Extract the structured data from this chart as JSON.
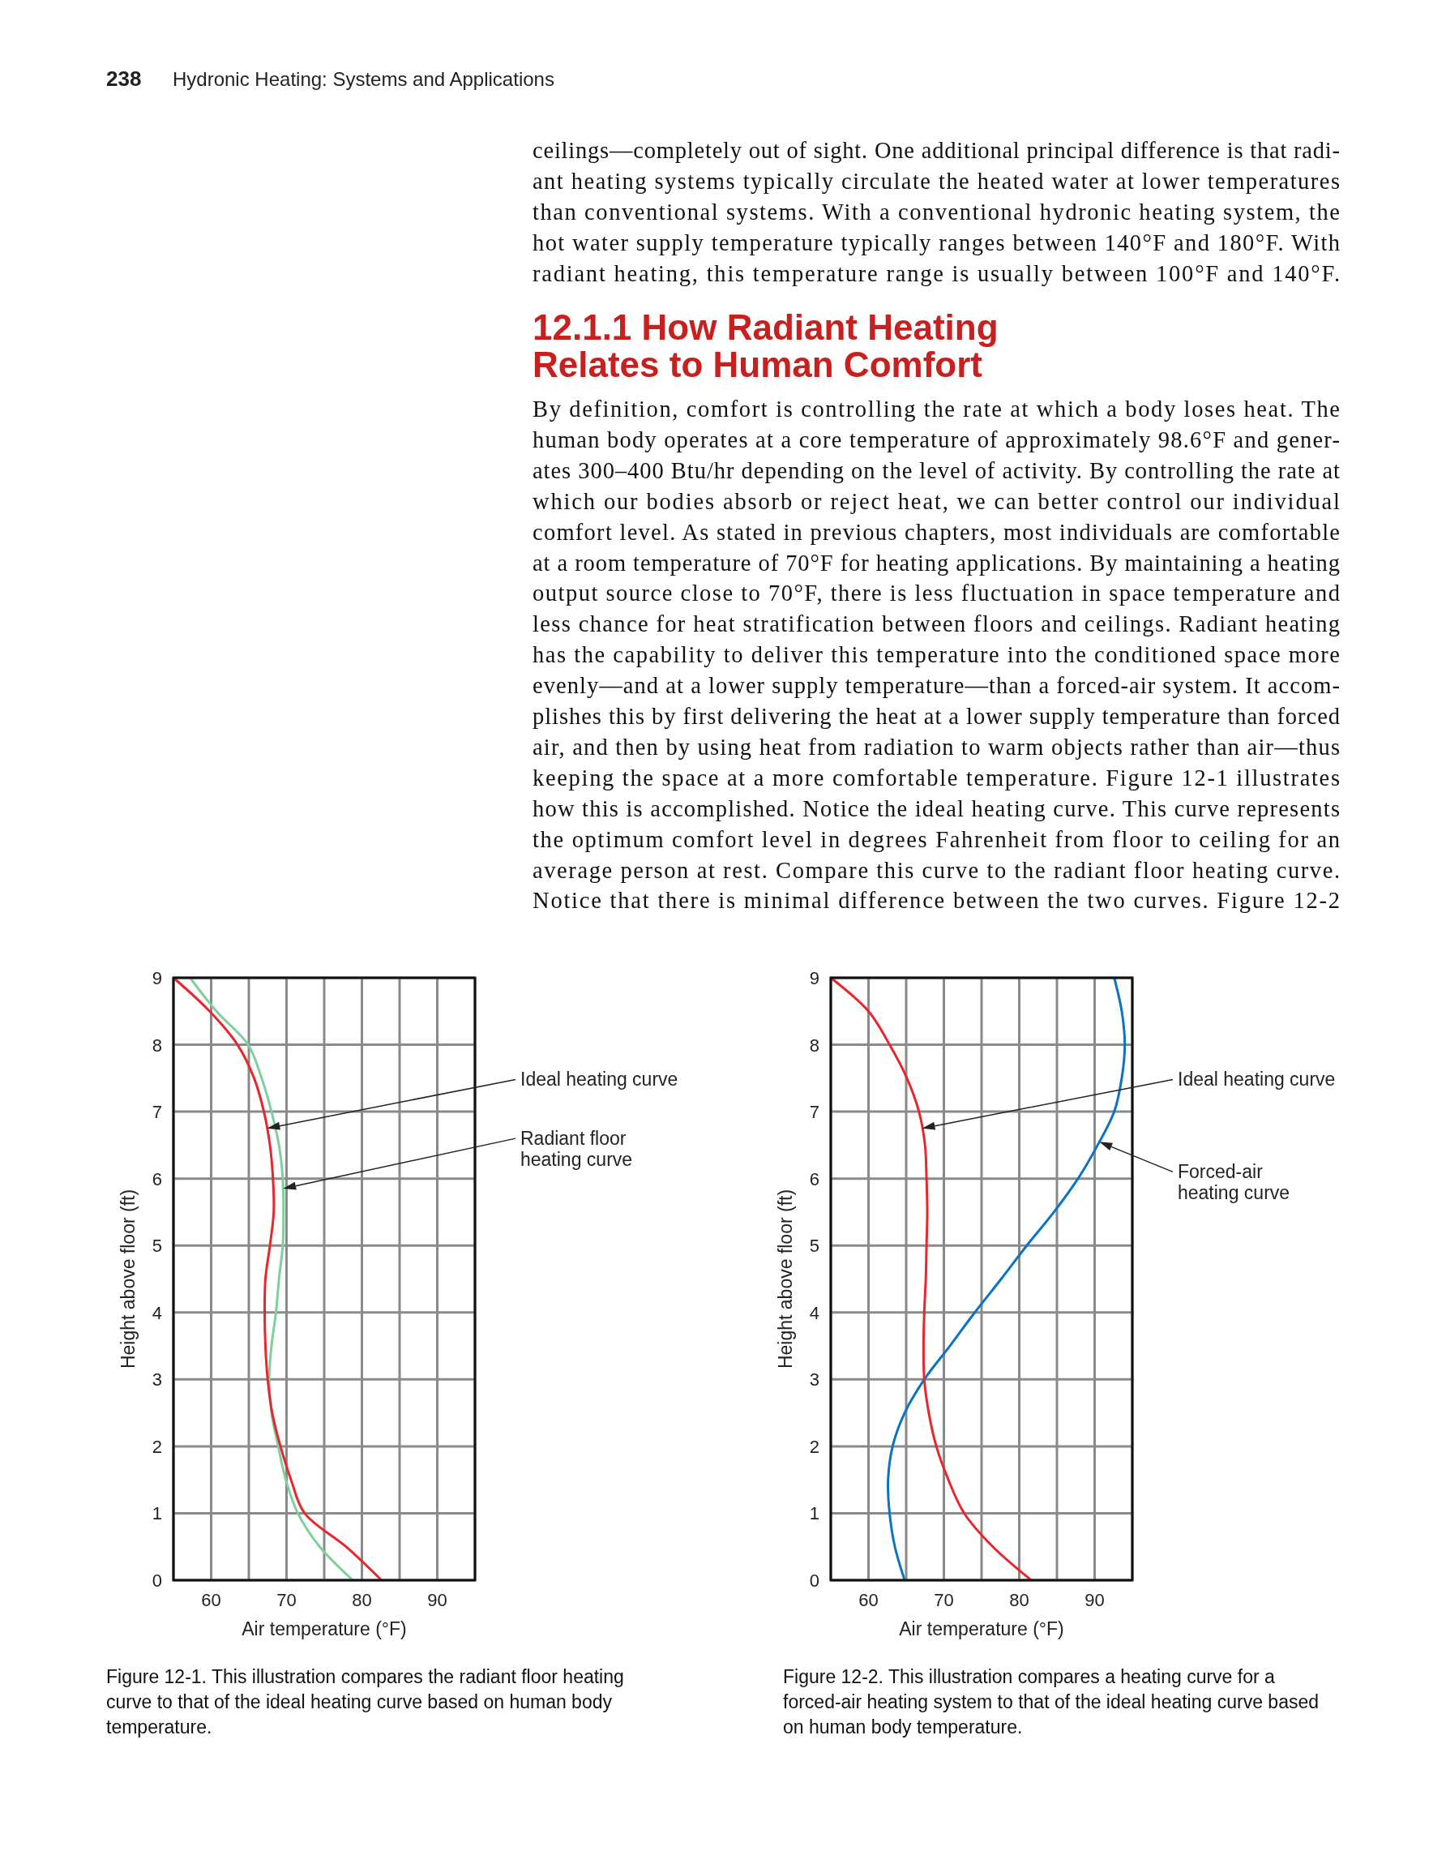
{
  "chart_data": [
    {
      "type": "other",
      "title": "12.1.1 How Radiant Heating Relates to Human Comfort",
      "annotations": [
        "238",
        "Hydronic Heating: Systems and Applications",
        "ceilings—completely out of sight. One additional principal difference is that radi-",
        "ant heating systems typically circulate the heated water at lower temperatures",
        "than conventional systems. With a conventional hydronic heating system, the",
        "hot water supply temperature typically ranges between 140°F and 180°F. With",
        "radiant heating, this temperature range is usually between 100°F and 140°F.",
        "By definition, comfort is controlling the rate at which a body loses heat. The",
        "human body operates at a core temperature of approximately 98.6°F and gener-",
        "ates 300–400 Btu/hr depending on the level of activity. By controlling the rate at",
        "which our bodies absorb or reject heat, we can better control our individual",
        "comfort level. As stated in previous chapters, most individuals are comfortable",
        "at a room temperature of 70°F for heating applications. By maintaining a heating",
        "output source close to 70°F, there is less fluctuation in space temperature and",
        "less chance for heat stratification between floors and ceilings. Radiant heating",
        "has the capability to deliver this temperature into the conditioned space more",
        "evenly—and at a lower supply temperature—than a forced-air system. It accom-",
        "plishes this by first delivering the heat at a lower supply temperature than forced",
        "air, and then by using heat from radiation to warm objects rather than air—thus",
        "keeping the space at a more comfortable temperature. Figure 12-1 illustrates",
        "how this is accomplished. Notice the ideal heating curve. This curve represents",
        "the optimum comfort level in degrees Fahrenheit from floor to ceiling for an",
        "average person at rest. Compare this curve to the radiant floor heating curve.",
        "Notice that there is minimal difference between the two curves. Figure 12-2"
      ]
    },
    {
      "type": "line",
      "xlabel": "Air temperature (°F)",
      "ylabel": "Height above floor (ft)",
      "xlim": [
        55,
        95
      ],
      "ylim": [
        0,
        9
      ],
      "xticks": [
        {
          "value": 55,
          "label": null
        },
        60,
        {
          "value": 65,
          "label": null
        },
        70,
        {
          "value": 75,
          "label": null
        },
        80,
        {
          "value": 85,
          "label": null
        },
        90,
        {
          "value": 95,
          "label": null
        }
      ],
      "yticks": [
        0,
        1,
        2,
        3,
        4,
        5,
        6,
        7,
        8,
        9
      ],
      "grid": true,
      "line_style": "solid",
      "marker": "none",
      "series": [
        {
          "color": "#7fcf9c",
          "x": [
            57.2,
            60.7,
            64.9,
            66.7,
            68,
            69,
            69.5,
            69.6,
            69.5,
            69,
            68.6,
            68,
            67.7,
            68,
            68.9,
            69.9,
            71.5,
            74.4,
            78.8
          ],
          "values": [
            9,
            8.5,
            8,
            7.5,
            7,
            6.5,
            6,
            5.5,
            5,
            4.5,
            4,
            3.5,
            3,
            2.5,
            2,
            1.5,
            1,
            0.5,
            0
          ]
        },
        {
          "color": "#e8262d",
          "x": [
            55,
            59.8,
            63.5,
            65.7,
            67,
            67.8,
            68.2,
            68.3,
            67.8,
            67.2,
            67.1,
            67.2,
            67.5,
            68.1,
            69.2,
            70.6,
            72.4,
            77.9,
            82.6
          ],
          "values": [
            9,
            8.5,
            8,
            7.5,
            7,
            6.5,
            6,
            5.5,
            5,
            4.5,
            4,
            3.5,
            3,
            2.5,
            2,
            1.5,
            1,
            0.5,
            0
          ]
        }
      ],
      "annotations": [
        "Ideal heating curve",
        "Radiant floor heating curve",
        "Figure 12-1. This illustration compares the radiant floor heating curve to that of the ideal heating curve based on human body temperature."
      ]
    },
    {
      "type": "line",
      "xlabel": "Air temperature (°F)",
      "ylabel": "Height above floor (ft)",
      "xlim": [
        55,
        95
      ],
      "ylim": [
        0,
        9
      ],
      "xticks": [
        {
          "value": 55,
          "label": null
        },
        60,
        {
          "value": 65,
          "label": null
        },
        70,
        {
          "value": 75,
          "label": null
        },
        80,
        {
          "value": 85,
          "label": null
        },
        90,
        {
          "value": 95,
          "label": null
        }
      ],
      "yticks": [
        0,
        1,
        2,
        3,
        4,
        5,
        6,
        7,
        8,
        9
      ],
      "grid": true,
      "line_style": "solid",
      "marker": "none",
      "series": [
        {
          "color": "#0a74c0",
          "x": [
            92.6,
            93.6,
            94,
            93.6,
            92.6,
            90.4,
            87.8,
            84.6,
            81,
            77.6,
            74.1,
            70.8,
            67.4,
            64.8,
            63.2,
            62.6,
            62.8,
            63.5,
            64.8
          ],
          "values": [
            9,
            8.5,
            8,
            7.5,
            7,
            6.5,
            6,
            5.5,
            5,
            4.5,
            4,
            3.5,
            3,
            2.5,
            2,
            1.5,
            1,
            0.5,
            0
          ]
        },
        {
          "color": "#e8262d",
          "x": [
            55,
            60,
            62.8,
            65.1,
            66.7,
            67.5,
            67.7,
            67.8,
            67.7,
            67.6,
            67.4,
            67.3,
            67.4,
            68,
            69,
            70.6,
            72.7,
            76.5,
            81.6
          ],
          "values": [
            9,
            8.5,
            8,
            7.5,
            7,
            6.5,
            6,
            5.5,
            5,
            4.5,
            4,
            3.5,
            3,
            2.5,
            2,
            1.5,
            1,
            0.5,
            0
          ]
        }
      ],
      "annotations": [
        "Ideal heating curve",
        "Forced-air heating curve",
        "Figure 12-2. This illustration compares a heating curve for a forced-air heating system to that of the ideal heating curve based on human body temperature."
      ]
    }
  ]
}
